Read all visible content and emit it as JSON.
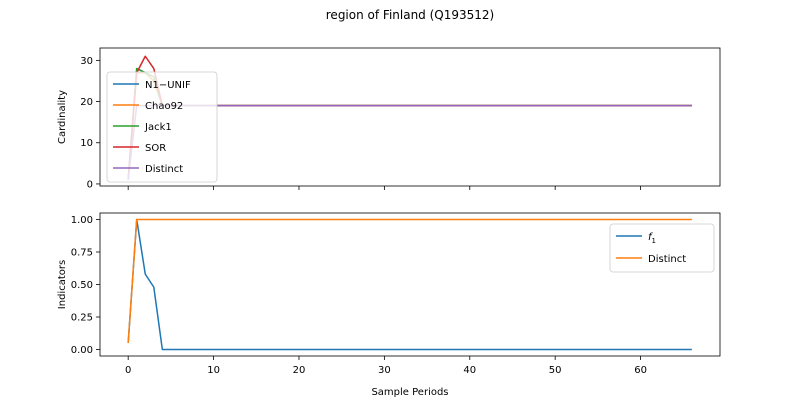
{
  "figure": {
    "title": "region of Finland (Q193512)"
  },
  "chart_data": [
    {
      "type": "line",
      "xlabel": "",
      "ylabel": "Cardinality",
      "xlim": [
        -3.3,
        69.3
      ],
      "ylim": [
        -0.5,
        33
      ],
      "xticks": [
        0,
        10,
        20,
        30,
        40,
        50,
        60
      ],
      "xticklabels_shown": false,
      "yticks": [
        0,
        10,
        20,
        30
      ],
      "legend_position": "upper-left",
      "series": [
        {
          "name": "N1−UNIF",
          "color": "#1f77b4",
          "x": [
            0,
            1,
            2,
            3,
            4,
            66
          ],
          "y": [
            1,
            28,
            27,
            25,
            19,
            19
          ]
        },
        {
          "name": "Chao92",
          "color": "#ff7f0e",
          "x": [
            0,
            1,
            2,
            3,
            4,
            66
          ],
          "y": [
            1,
            27,
            27,
            25,
            19,
            19
          ]
        },
        {
          "name": "Jack1",
          "color": "#2ca02c",
          "x": [
            0,
            1,
            2,
            3,
            4,
            66
          ],
          "y": [
            1,
            28,
            27,
            26,
            19,
            19
          ]
        },
        {
          "name": "SOR",
          "color": "#d62728",
          "x": [
            0,
            1,
            2,
            3,
            4,
            66
          ],
          "y": [
            1,
            27,
            31,
            28,
            19,
            19
          ]
        },
        {
          "name": "Distinct",
          "color": "#9467bd",
          "x": [
            0,
            1,
            2,
            3,
            4,
            66
          ],
          "y": [
            1,
            19,
            19,
            19,
            19,
            19
          ]
        }
      ]
    },
    {
      "type": "line",
      "xlabel": "Sample Periods",
      "ylabel": "Indicators",
      "xlim": [
        -3.3,
        69.3
      ],
      "ylim": [
        -0.05,
        1.05
      ],
      "xticks": [
        0,
        10,
        20,
        30,
        40,
        50,
        60
      ],
      "xticklabels_shown": true,
      "yticks": [
        0.0,
        0.25,
        0.5,
        0.75,
        1.0
      ],
      "yticklabels": [
        "0.00",
        "0.25",
        "0.50",
        "0.75",
        "1.00"
      ],
      "legend_position": "upper-right",
      "series": [
        {
          "name": "f",
          "name_subscript": "1",
          "color": "#1f77b4",
          "x": [
            0,
            1,
            2,
            3,
            4,
            66
          ],
          "y": [
            0.05,
            1.0,
            0.58,
            0.48,
            0.0,
            0.0
          ]
        },
        {
          "name": "Distinct",
          "color": "#ff7f0e",
          "x": [
            0,
            1,
            2,
            3,
            4,
            66
          ],
          "y": [
            0.05,
            1.0,
            1.0,
            1.0,
            1.0,
            1.0
          ]
        }
      ]
    }
  ]
}
